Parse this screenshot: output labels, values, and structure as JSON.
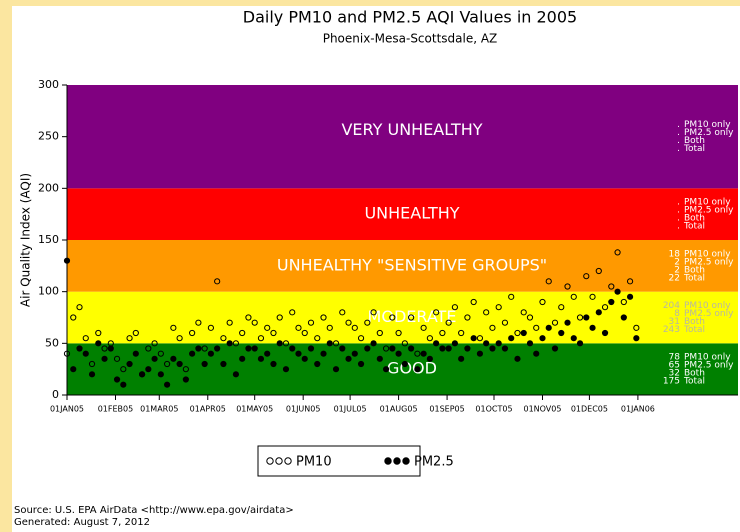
{
  "chart_data": {
    "type": "scatter",
    "title": "Daily PM10 and PM2.5 AQI Values in 2005",
    "subtitle": "Phoenix-Mesa-Scottsdale, AZ",
    "y_label": "Air Quality Index (AQI)",
    "ylim": [
      0,
      300
    ],
    "yticks": [
      0,
      50,
      100,
      150,
      200,
      250,
      300
    ],
    "xlim": [
      "2005-01-01",
      "2006-03-06"
    ],
    "xticks": [
      {
        "value": "2005-01-01",
        "label": "01JAN05"
      },
      {
        "value": "2005-02-01",
        "label": "01FEB05"
      },
      {
        "value": "2005-03-01",
        "label": "01MAR05"
      },
      {
        "value": "2005-04-01",
        "label": "01APR05"
      },
      {
        "value": "2005-05-01",
        "label": "01MAY05"
      },
      {
        "value": "2005-06-01",
        "label": "01JUN05"
      },
      {
        "value": "2005-07-01",
        "label": "01JUL05"
      },
      {
        "value": "2005-08-01",
        "label": "01AUG05"
      },
      {
        "value": "2005-09-01",
        "label": "01SEP05"
      },
      {
        "value": "2005-10-01",
        "label": "01OCT05"
      },
      {
        "value": "2005-11-01",
        "label": "01NOV05"
      },
      {
        "value": "2005-12-01",
        "label": "01DEC05"
      },
      {
        "value": "2006-01-01",
        "label": "01JAN06"
      }
    ],
    "stat_labels": [
      "PM10 only",
      "PM2.5 only",
      "Both",
      "Total"
    ],
    "bands": [
      {
        "name": "GOOD",
        "from": 0,
        "to": 50,
        "color": "#008000",
        "text_color": "#ffffff",
        "counts": [
          78,
          65,
          32,
          175
        ]
      },
      {
        "name": "MODERATE",
        "from": 50,
        "to": 100,
        "color": "#ffff00",
        "text_color": "#b8b8a0",
        "counts": [
          204,
          8,
          31,
          243
        ]
      },
      {
        "name": "UNHEALTHY \"SENSITIVE GROUPS\"",
        "from": 100,
        "to": 150,
        "color": "#ff9900",
        "text_color": "#ffffff",
        "counts": [
          18,
          2,
          2,
          22
        ]
      },
      {
        "name": "UNHEALTHY",
        "from": 150,
        "to": 200,
        "color": "#ff0000",
        "text_color": "#ffffff",
        "counts": [
          ".",
          ".",
          ".",
          "."
        ]
      },
      {
        "name": "VERY UNHEALTHY",
        "from": 200,
        "to": 300,
        "color": "#800080",
        "text_color": "#ffffff",
        "counts": [
          ".",
          ".",
          ".",
          "."
        ]
      }
    ],
    "x": [
      "2005-01-01",
      "2005-01-05",
      "2005-01-09",
      "2005-01-13",
      "2005-01-17",
      "2005-01-21",
      "2005-01-25",
      "2005-01-29",
      "2005-02-02",
      "2005-02-06",
      "2005-02-10",
      "2005-02-14",
      "2005-02-18",
      "2005-02-22",
      "2005-02-26",
      "2005-03-02",
      "2005-03-06",
      "2005-03-10",
      "2005-03-14",
      "2005-03-18",
      "2005-03-22",
      "2005-03-26",
      "2005-03-30",
      "2005-04-03",
      "2005-04-07",
      "2005-04-11",
      "2005-04-15",
      "2005-04-19",
      "2005-04-23",
      "2005-04-27",
      "2005-05-01",
      "2005-05-05",
      "2005-05-09",
      "2005-05-13",
      "2005-05-17",
      "2005-05-21",
      "2005-05-25",
      "2005-05-29",
      "2005-06-02",
      "2005-06-06",
      "2005-06-10",
      "2005-06-14",
      "2005-06-18",
      "2005-06-22",
      "2005-06-26",
      "2005-06-30",
      "2005-07-04",
      "2005-07-08",
      "2005-07-12",
      "2005-07-16",
      "2005-07-20",
      "2005-07-24",
      "2005-07-28",
      "2005-08-01",
      "2005-08-05",
      "2005-08-09",
      "2005-08-13",
      "2005-08-17",
      "2005-08-21",
      "2005-08-25",
      "2005-08-29",
      "2005-09-02",
      "2005-09-06",
      "2005-09-10",
      "2005-09-14",
      "2005-09-18",
      "2005-09-22",
      "2005-09-26",
      "2005-09-30",
      "2005-10-04",
      "2005-10-08",
      "2005-10-12",
      "2005-10-16",
      "2005-10-20",
      "2005-10-24",
      "2005-10-28",
      "2005-11-01",
      "2005-11-05",
      "2005-11-09",
      "2005-11-13",
      "2005-11-17",
      "2005-11-21",
      "2005-11-25",
      "2005-11-29",
      "2005-12-03",
      "2005-12-07",
      "2005-12-11",
      "2005-12-15",
      "2005-12-19",
      "2005-12-23",
      "2005-12-27",
      "2005-12-31"
    ],
    "series": [
      {
        "name": "PM10",
        "marker": "open",
        "color": "#000000",
        "values": [
          40,
          75,
          85,
          55,
          30,
          60,
          45,
          50,
          35,
          25,
          55,
          60,
          20,
          45,
          50,
          40,
          30,
          65,
          55,
          25,
          60,
          70,
          45,
          65,
          110,
          55,
          70,
          50,
          60,
          75,
          70,
          55,
          65,
          60,
          75,
          50,
          80,
          65,
          60,
          70,
          55,
          75,
          65,
          50,
          80,
          70,
          65,
          55,
          70,
          80,
          60,
          45,
          75,
          60,
          50,
          75,
          40,
          65,
          55,
          80,
          60,
          70,
          85,
          60,
          75,
          90,
          55,
          80,
          65,
          85,
          70,
          95,
          60,
          80,
          75,
          65,
          90,
          110,
          70,
          85,
          105,
          95,
          75,
          115,
          95,
          120,
          85,
          105,
          138,
          90,
          110,
          65
        ]
      },
      {
        "name": "PM2.5",
        "marker": "filled",
        "color": "#000000",
        "values": [
          130,
          25,
          45,
          40,
          20,
          50,
          35,
          45,
          15,
          10,
          30,
          40,
          20,
          25,
          35,
          20,
          10,
          35,
          30,
          15,
          40,
          45,
          30,
          40,
          45,
          30,
          50,
          20,
          35,
          45,
          45,
          35,
          40,
          30,
          50,
          25,
          45,
          40,
          35,
          45,
          30,
          40,
          50,
          25,
          45,
          35,
          40,
          30,
          45,
          50,
          35,
          25,
          45,
          40,
          30,
          45,
          25,
          40,
          35,
          50,
          45,
          45,
          50,
          35,
          45,
          55,
          40,
          50,
          45,
          50,
          45,
          55,
          35,
          60,
          50,
          40,
          55,
          65,
          45,
          60,
          70,
          55,
          50,
          75,
          65,
          80,
          60,
          90,
          100,
          75,
          95,
          55
        ]
      }
    ],
    "source": "Source: U.S. EPA AirData <http://www.epa.gov/airdata>",
    "generated": "Generated: August 7, 2012"
  }
}
